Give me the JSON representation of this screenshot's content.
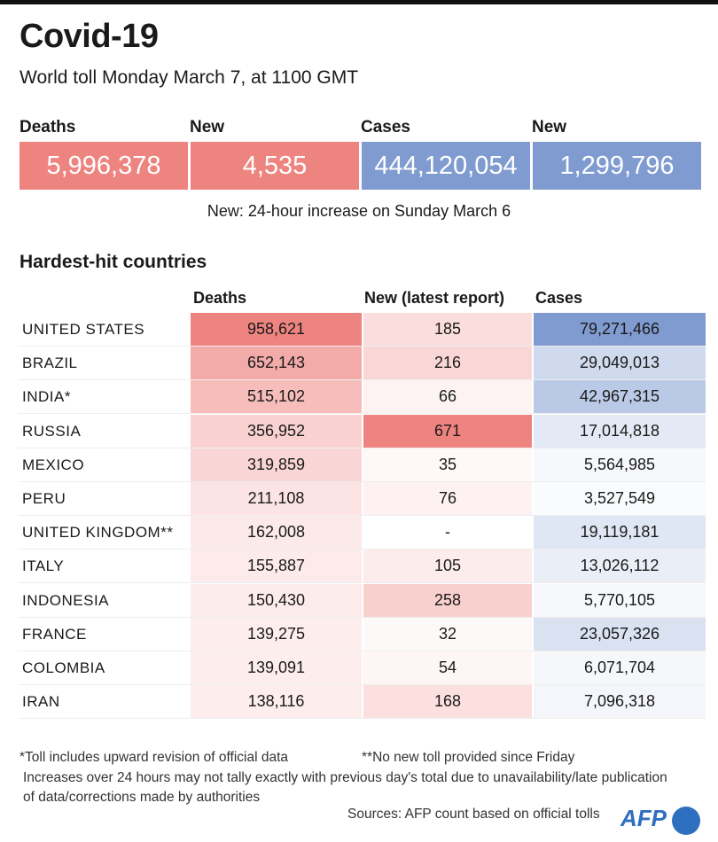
{
  "title": "Covid-19",
  "subtitle": "World toll Monday March 7, at 1100 GMT",
  "colors": {
    "red": "#ee8480",
    "blue": "#7f9bd0"
  },
  "kpis": [
    {
      "label": "Deaths",
      "value": "5,996,378",
      "color": "#ee8480"
    },
    {
      "label": "New",
      "value": "4,535",
      "color": "#ee8480"
    },
    {
      "label": "Cases",
      "value": "444,120,054",
      "color": "#7f9bd0"
    },
    {
      "label": "New",
      "value": "1,299,796",
      "color": "#7f9bd0"
    }
  ],
  "kpi_note": "New: 24-hour increase on Sunday March 6",
  "section_title": "Hardest-hit countries",
  "chart_data": {
    "type": "table",
    "columns": [
      "Deaths",
      "New (latest report)",
      "Cases"
    ],
    "rows": [
      {
        "country": "UNITED STATES",
        "deaths": "958,621",
        "new": "185",
        "cases": "79,271,466"
      },
      {
        "country": "BRAZIL",
        "deaths": "652,143",
        "new": "216",
        "cases": "29,049,013"
      },
      {
        "country": "INDIA*",
        "deaths": "515,102",
        "new": "66",
        "cases": "42,967,315"
      },
      {
        "country": "RUSSIA",
        "deaths": "356,952",
        "new": "671",
        "cases": "17,014,818"
      },
      {
        "country": "MEXICO",
        "deaths": "319,859",
        "new": "35",
        "cases": "5,564,985"
      },
      {
        "country": "PERU",
        "deaths": "211,108",
        "new": "76",
        "cases": "3,527,549"
      },
      {
        "country": "UNITED KINGDOM**",
        "deaths": "162,008",
        "new": "-",
        "cases": "19,119,181"
      },
      {
        "country": "ITALY",
        "deaths": "155,887",
        "new": "105",
        "cases": "13,026,112"
      },
      {
        "country": "INDONESIA",
        "deaths": "150,430",
        "new": "258",
        "cases": "5,770,105"
      },
      {
        "country": "FRANCE",
        "deaths": "139,275",
        "new": "32",
        "cases": "23,057,326"
      },
      {
        "country": "COLOMBIA",
        "deaths": "139,091",
        "new": "54",
        "cases": "6,071,704"
      },
      {
        "country": "IRAN",
        "deaths": "138,116",
        "new": "168",
        "cases": "7,096,318"
      }
    ]
  },
  "footnotes": {
    "star": "*Toll includes upward revision of official data",
    "double_star": "**No new toll provided since Friday",
    "increases": "Increases over 24 hours may not tally exactly with previous day's total due to unavailability/late publication",
    "increases2": "of data/corrections made by authorities",
    "sources": "Sources: AFP count based on official tolls"
  },
  "logo": "AFP"
}
